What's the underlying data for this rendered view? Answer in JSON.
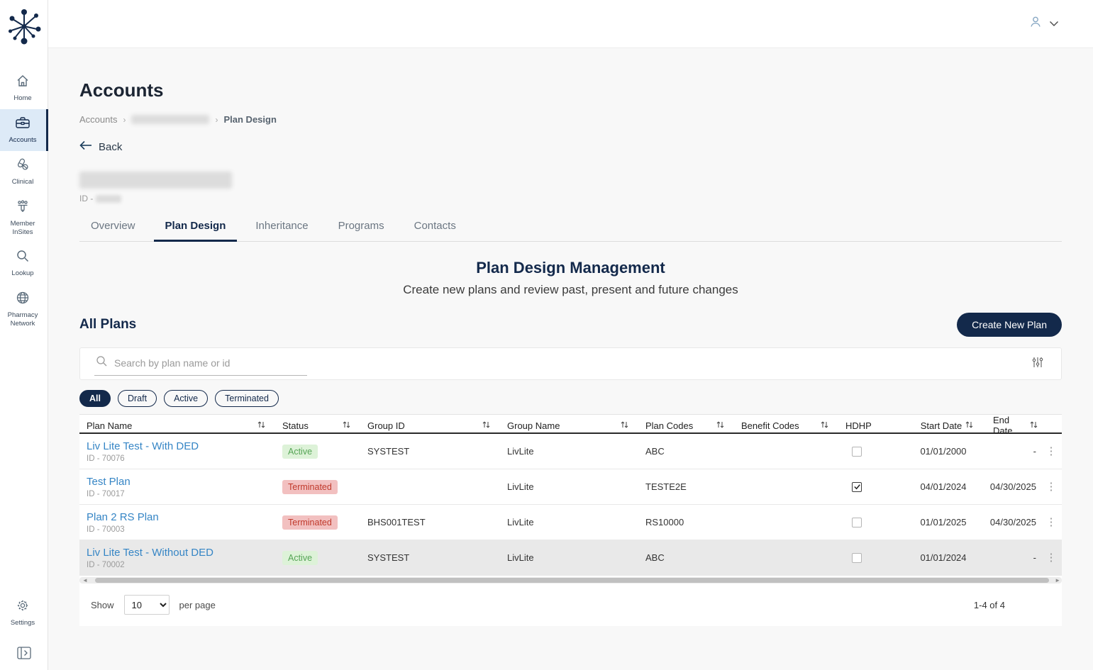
{
  "sidebar": {
    "items": [
      {
        "label": "Home",
        "icon": "home-icon",
        "active": false
      },
      {
        "label": "Accounts",
        "icon": "briefcase-icon",
        "active": true
      },
      {
        "label": "Clinical",
        "icon": "pills-icon",
        "active": false
      },
      {
        "label": "Member InSites",
        "icon": "people-icon",
        "active": false
      },
      {
        "label": "Lookup",
        "icon": "search-icon",
        "active": false
      },
      {
        "label": "Pharmacy Network",
        "icon": "globe-icon",
        "active": false
      }
    ],
    "settings_label": "Settings"
  },
  "page": {
    "title": "Accounts",
    "breadcrumb_root": "Accounts",
    "breadcrumb_current": "Plan Design",
    "back_label": "Back",
    "id_prefix": "ID -"
  },
  "tabs": [
    {
      "label": "Overview",
      "active": false
    },
    {
      "label": "Plan Design",
      "active": true
    },
    {
      "label": "Inheritance",
      "active": false
    },
    {
      "label": "Programs",
      "active": false
    },
    {
      "label": "Contacts",
      "active": false
    }
  ],
  "section": {
    "title": "Plan Design Management",
    "subtitle": "Create new plans and review past, present and future changes"
  },
  "plans": {
    "heading": "All Plans",
    "create_button": "Create New Plan",
    "search_placeholder": "Search by plan name or id",
    "filters": [
      {
        "label": "All",
        "selected": true
      },
      {
        "label": "Draft",
        "selected": false
      },
      {
        "label": "Active",
        "selected": false
      },
      {
        "label": "Terminated",
        "selected": false
      }
    ],
    "table": {
      "columns": [
        {
          "label": "Plan Name",
          "sortable": true
        },
        {
          "label": "Status",
          "sortable": true
        },
        {
          "label": "Group ID",
          "sortable": true
        },
        {
          "label": "Group Name",
          "sortable": true
        },
        {
          "label": "Plan Codes",
          "sortable": true
        },
        {
          "label": "Benefit Codes",
          "sortable": true
        },
        {
          "label": "HDHP",
          "sortable": false
        },
        {
          "label": "Start Date",
          "sortable": true
        },
        {
          "label": "End Date",
          "sortable": true
        }
      ],
      "rows": [
        {
          "name": "Liv Lite Test - With DED",
          "id": "ID - 70076",
          "status": "Active",
          "group_id": "SYSTEST",
          "group_name": "LivLite",
          "plan_codes": "ABC",
          "benefit_codes": "",
          "hdhp": false,
          "start_date": "01/01/2000",
          "end_date": "-",
          "highlighted": false
        },
        {
          "name": "Test Plan",
          "id": "ID - 70017",
          "status": "Terminated",
          "group_id": "",
          "group_name": "LivLite",
          "plan_codes": "TESTE2E",
          "benefit_codes": "",
          "hdhp": true,
          "start_date": "04/01/2024",
          "end_date": "04/30/2025",
          "highlighted": false
        },
        {
          "name": "Plan 2 RS Plan",
          "id": "ID - 70003",
          "status": "Terminated",
          "group_id": "BHS001TEST",
          "group_name": "LivLite",
          "plan_codes": "RS10000",
          "benefit_codes": "",
          "hdhp": false,
          "start_date": "01/01/2025",
          "end_date": "04/30/2025",
          "highlighted": false
        },
        {
          "name": "Liv Lite Test - Without DED",
          "id": "ID - 70002",
          "status": "Active",
          "group_id": "SYSTEST",
          "group_name": "LivLite",
          "plan_codes": "ABC",
          "benefit_codes": "",
          "hdhp": false,
          "start_date": "01/01/2024",
          "end_date": "-",
          "highlighted": true
        }
      ]
    },
    "pagination": {
      "show_label": "Show",
      "page_size": "10",
      "per_page_label": "per page",
      "range": "1-4 of 4"
    }
  },
  "icons": {
    "kebab": "⋮",
    "scroll_left": "◄",
    "scroll_right": "►"
  },
  "colors": {
    "brand_navy": "#13294b",
    "link_blue": "#3585c5",
    "active_green": "#56a556",
    "active_green_bg": "#ddf2d8",
    "terminated_red": "#c0392b",
    "terminated_red_bg": "#f2c0c0",
    "sidebar_active_bg": "#ddeaf7"
  }
}
